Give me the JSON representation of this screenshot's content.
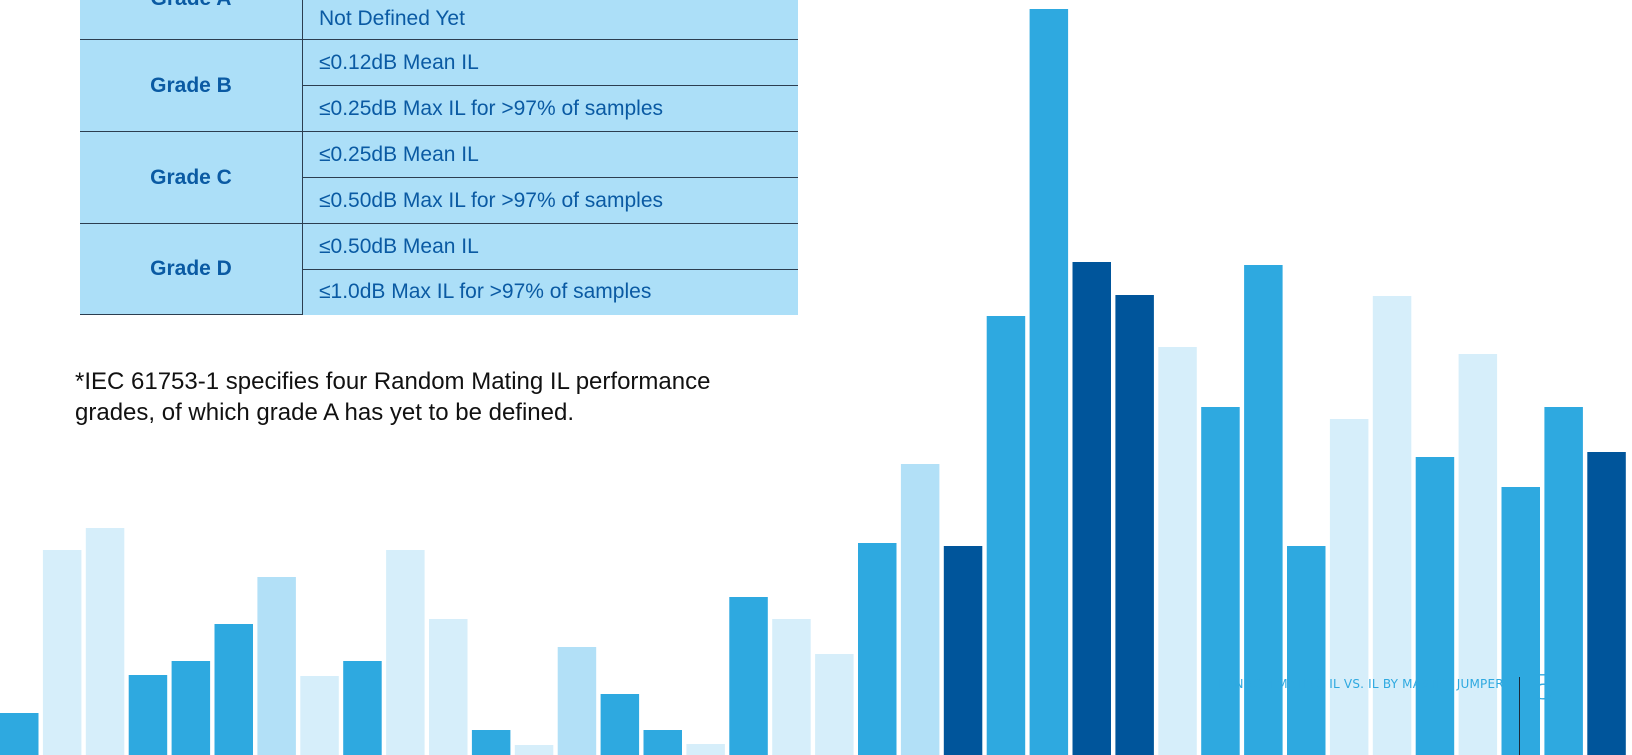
{
  "grades_table": {
    "rows": [
      {
        "grade": "Grade A",
        "criteria": [
          "Not Defined Yet"
        ]
      },
      {
        "grade": "Grade B",
        "criteria": [
          "≤0.12dB Mean IL",
          "≤0.25dB Max IL for >97% of samples"
        ]
      },
      {
        "grade": "Grade C",
        "criteria": [
          "≤0.25dB Mean IL",
          "≤0.50dB Max IL for >97% of samples"
        ]
      },
      {
        "grade": "Grade D",
        "criteria": [
          "≤0.50dB Mean IL",
          "≤1.0dB Max IL for >97% of samples"
        ]
      }
    ]
  },
  "footnote": {
    "line1": "*IEC 61753-1 specifies four Random Mating IL performance",
    "line2": "grades, of which grade A has yet to be defined."
  },
  "footer": {
    "title": "RANDOM MATING IL VS. IL BY MASTER JUMPER",
    "page_number": "5"
  },
  "colors": {
    "table_bg": "#acdff8",
    "table_text": "#0a5aa3",
    "bar_pale": "#d6eefa",
    "bar_light": "#b2e0f7",
    "bar_mid": "#2ea9e0",
    "bar_dark": "#00559b"
  },
  "chart_data": {
    "type": "bar",
    "note": "decorative bar graphic, no axes or labels printed",
    "shades": [
      "mid",
      "pale",
      "pale",
      "mid",
      "mid",
      "mid",
      "light",
      "pale",
      "mid",
      "pale",
      "pale",
      "mid",
      "pale",
      "light",
      "mid",
      "mid",
      "pale",
      "mid",
      "pale",
      "pale",
      "mid",
      "light",
      "dark",
      "mid",
      "mid",
      "dark",
      "dark",
      "pale",
      "mid",
      "mid",
      "mid",
      "pale",
      "pale",
      "mid",
      "pale",
      "mid",
      "mid",
      "dark"
    ],
    "values": [
      42,
      205,
      227,
      80,
      94,
      131,
      178,
      79,
      94,
      205,
      136,
      25,
      10,
      108,
      61,
      25,
      11,
      158,
      136,
      101,
      212,
      291,
      209,
      439,
      746,
      493,
      460,
      408,
      348,
      490,
      209,
      336,
      459,
      298,
      401,
      268,
      348,
      303
    ],
    "ylim": [
      0,
      755
    ]
  }
}
